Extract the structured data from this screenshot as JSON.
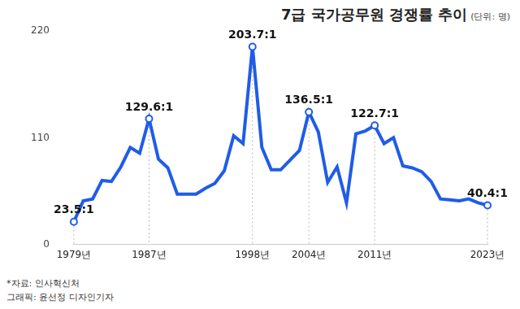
{
  "chart_data": {
    "type": "line",
    "title": "7급 국가공무원 경쟁률 추이",
    "subtitle": "(단위: 명)",
    "categories": [
      "1979년",
      null,
      null,
      null,
      null,
      null,
      null,
      null,
      "1987년",
      null,
      null,
      null,
      null,
      null,
      null,
      null,
      null,
      null,
      null,
      "1998년",
      null,
      null,
      null,
      null,
      null,
      "2004년",
      null,
      null,
      null,
      null,
      null,
      null,
      "2011년",
      null,
      null,
      null,
      null,
      null,
      null,
      null,
      null,
      null,
      null,
      null,
      "2023년"
    ],
    "values": [
      23.5,
      45,
      47,
      66,
      65,
      80,
      100,
      94,
      129.6,
      88,
      79,
      52,
      52,
      52,
      58,
      63,
      76,
      112,
      104,
      203.7,
      100,
      77,
      77,
      87,
      97,
      136.5,
      116,
      64,
      80,
      43,
      114,
      117,
      122.7,
      104,
      110,
      81,
      79,
      75,
      65,
      47,
      46,
      45,
      47,
      43,
      40.4
    ],
    "value_labels": [
      "23.5:1",
      null,
      null,
      null,
      null,
      null,
      null,
      null,
      "129.6:1",
      null,
      null,
      null,
      null,
      null,
      null,
      null,
      null,
      null,
      null,
      "203.7:1",
      null,
      null,
      null,
      null,
      null,
      "136.5:1",
      null,
      null,
      null,
      null,
      null,
      null,
      "122.7:1",
      null,
      null,
      null,
      null,
      null,
      null,
      null,
      null,
      null,
      null,
      null,
      "40.4:1"
    ],
    "data_labels": true,
    "color": "#1f5ce8",
    "marker": "circle",
    "ylim": [
      0,
      220
    ],
    "yticks": [
      0,
      110,
      220
    ],
    "grid": false,
    "notes": [
      "*자료: 인사혁신처",
      "그래픽: 윤선정 디자인기자"
    ]
  }
}
